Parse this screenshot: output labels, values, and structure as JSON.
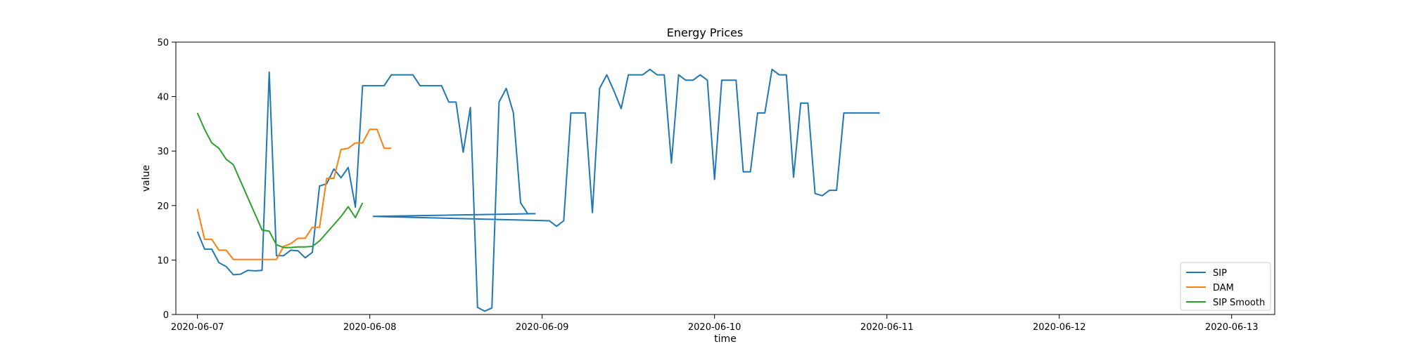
{
  "chart_data": {
    "type": "line",
    "title": "Energy Prices",
    "xlabel": "time",
    "ylabel": "value",
    "xlim": [
      "2020-06-06T21:00",
      "2020-06-13T06:00"
    ],
    "ylim": [
      0,
      50
    ],
    "x_ticks": [
      "2020-06-07",
      "2020-06-08",
      "2020-06-09",
      "2020-06-10",
      "2020-06-11",
      "2020-06-12",
      "2020-06-13"
    ],
    "y_ticks": [
      0,
      10,
      20,
      30,
      40,
      50
    ],
    "grid": false,
    "legend_position": "lower-right",
    "series": [
      {
        "name": "SIP",
        "color": "#1f77b4",
        "points": [
          [
            "2020-06-07T00:00",
            15.2
          ],
          [
            "2020-06-07T01:00",
            12.0
          ],
          [
            "2020-06-07T02:00",
            12.0
          ],
          [
            "2020-06-07T03:00",
            9.5
          ],
          [
            "2020-06-07T04:00",
            8.8
          ],
          [
            "2020-06-07T05:00",
            7.3
          ],
          [
            "2020-06-07T06:00",
            7.4
          ],
          [
            "2020-06-07T07:00",
            8.1
          ],
          [
            "2020-06-07T08:00",
            8.0
          ],
          [
            "2020-06-07T09:00",
            8.1
          ],
          [
            "2020-06-07T10:00",
            44.5
          ],
          [
            "2020-06-07T11:00",
            10.8
          ],
          [
            "2020-06-07T12:00",
            10.8
          ],
          [
            "2020-06-07T13:00",
            11.8
          ],
          [
            "2020-06-07T14:00",
            11.7
          ],
          [
            "2020-06-07T15:00",
            10.4
          ],
          [
            "2020-06-07T16:00",
            11.4
          ],
          [
            "2020-06-07T17:00",
            23.6
          ],
          [
            "2020-06-07T18:00",
            24.0
          ],
          [
            "2020-06-07T19:00",
            26.7
          ],
          [
            "2020-06-07T20:00",
            25.1
          ],
          [
            "2020-06-07T21:00",
            27.0
          ],
          [
            "2020-06-07T22:00",
            19.7
          ],
          [
            "2020-06-07T23:00",
            42.0
          ],
          [
            "2020-06-08T00:00",
            42.0
          ],
          [
            "2020-06-08T01:00",
            42.0
          ],
          [
            "2020-06-08T02:00",
            42.0
          ],
          [
            "2020-06-08T03:00",
            44.0
          ],
          [
            "2020-06-08T04:00",
            44.0
          ],
          [
            "2020-06-08T05:00",
            44.0
          ],
          [
            "2020-06-08T06:00",
            44.0
          ],
          [
            "2020-06-08T07:00",
            42.0
          ],
          [
            "2020-06-08T08:00",
            42.0
          ],
          [
            "2020-06-08T09:00",
            42.0
          ],
          [
            "2020-06-08T10:00",
            42.0
          ],
          [
            "2020-06-08T11:00",
            39.0
          ],
          [
            "2020-06-08T12:00",
            39.0
          ],
          [
            "2020-06-08T13:00",
            29.8
          ],
          [
            "2020-06-08T14:00",
            38.0
          ],
          [
            "2020-06-08T15:00",
            1.3
          ],
          [
            "2020-06-08T16:00",
            0.6
          ],
          [
            "2020-06-08T17:00",
            1.2
          ],
          [
            "2020-06-08T18:00",
            39.0
          ],
          [
            "2020-06-08T19:00",
            41.5
          ],
          [
            "2020-06-08T20:00",
            37.0
          ],
          [
            "2020-06-08T21:00",
            20.5
          ],
          [
            "2020-06-08T22:00",
            18.5
          ],
          [
            "2020-06-08T23:00",
            18.5
          ],
          [
            "2020-06-08T00:30",
            18.0
          ],
          [
            "2020-06-09T01:00",
            17.2
          ],
          [
            "2020-06-09T02:00",
            16.2
          ],
          [
            "2020-06-09T03:00",
            17.2
          ],
          [
            "2020-06-09T04:00",
            37.0
          ],
          [
            "2020-06-09T05:00",
            37.0
          ],
          [
            "2020-06-09T06:00",
            37.0
          ],
          [
            "2020-06-09T07:00",
            18.7
          ],
          [
            "2020-06-09T08:00",
            41.5
          ],
          [
            "2020-06-09T09:00",
            44.0
          ],
          [
            "2020-06-09T10:00",
            41.0
          ],
          [
            "2020-06-09T11:00",
            37.8
          ],
          [
            "2020-06-09T12:00",
            44.0
          ],
          [
            "2020-06-09T13:00",
            44.0
          ],
          [
            "2020-06-09T14:00",
            44.0
          ],
          [
            "2020-06-09T15:00",
            45.0
          ],
          [
            "2020-06-09T16:00",
            44.0
          ],
          [
            "2020-06-09T17:00",
            44.0
          ],
          [
            "2020-06-09T18:00",
            27.8
          ],
          [
            "2020-06-09T19:00",
            44.0
          ],
          [
            "2020-06-09T20:00",
            43.0
          ],
          [
            "2020-06-09T21:00",
            43.0
          ],
          [
            "2020-06-09T22:00",
            44.0
          ],
          [
            "2020-06-09T23:00",
            43.0
          ],
          [
            "2020-06-10T00:00",
            24.8
          ],
          [
            "2020-06-10T01:00",
            43.0
          ],
          [
            "2020-06-10T02:00",
            43.0
          ],
          [
            "2020-06-10T03:00",
            43.0
          ],
          [
            "2020-06-10T04:00",
            26.2
          ],
          [
            "2020-06-10T05:00",
            26.2
          ],
          [
            "2020-06-10T06:00",
            37.0
          ],
          [
            "2020-06-10T07:00",
            37.0
          ],
          [
            "2020-06-10T08:00",
            45.0
          ],
          [
            "2020-06-10T09:00",
            44.0
          ],
          [
            "2020-06-10T10:00",
            44.0
          ],
          [
            "2020-06-10T11:00",
            25.2
          ],
          [
            "2020-06-10T12:00",
            38.8
          ],
          [
            "2020-06-10T13:00",
            38.8
          ],
          [
            "2020-06-10T14:00",
            22.2
          ],
          [
            "2020-06-10T15:00",
            21.8
          ],
          [
            "2020-06-10T16:00",
            22.8
          ],
          [
            "2020-06-10T17:00",
            22.8
          ],
          [
            "2020-06-10T18:00",
            37.0
          ],
          [
            "2020-06-10T19:00",
            37.0
          ],
          [
            "2020-06-10T20:00",
            37.0
          ],
          [
            "2020-06-10T21:00",
            37.0
          ],
          [
            "2020-06-10T22:00",
            37.0
          ],
          [
            "2020-06-10T23:00",
            37.0
          ]
        ]
      },
      {
        "name": "DAM",
        "color": "#ff7f0e",
        "points": [
          [
            "2020-06-07T00:00",
            19.4
          ],
          [
            "2020-06-07T01:00",
            13.8
          ],
          [
            "2020-06-07T02:00",
            13.8
          ],
          [
            "2020-06-07T03:00",
            11.8
          ],
          [
            "2020-06-07T04:00",
            11.8
          ],
          [
            "2020-06-07T05:00",
            10.1
          ],
          [
            "2020-06-07T07:00",
            10.1
          ],
          [
            "2020-06-07T09:00",
            10.1
          ],
          [
            "2020-06-07T11:00",
            10.1
          ],
          [
            "2020-06-07T12:00",
            12.5
          ],
          [
            "2020-06-07T13:00",
            13.0
          ],
          [
            "2020-06-07T14:00",
            14.0
          ],
          [
            "2020-06-07T15:00",
            14.0
          ],
          [
            "2020-06-07T16:00",
            16.0
          ],
          [
            "2020-06-07T17:00",
            16.0
          ],
          [
            "2020-06-07T18:00",
            25.0
          ],
          [
            "2020-06-07T19:00",
            25.0
          ],
          [
            "2020-06-07T20:00",
            30.3
          ],
          [
            "2020-06-07T21:00",
            30.5
          ],
          [
            "2020-06-07T22:00",
            31.5
          ],
          [
            "2020-06-07T23:00",
            31.5
          ],
          [
            "2020-06-08T00:00",
            34.0
          ],
          [
            "2020-06-08T01:00",
            34.0
          ],
          [
            "2020-06-08T02:00",
            30.5
          ],
          [
            "2020-06-08T03:00",
            30.5
          ]
        ]
      },
      {
        "name": "SIP Smooth",
        "color": "#2ca02c",
        "points": [
          [
            "2020-06-07T00:00",
            37.0
          ],
          [
            "2020-06-07T01:00",
            34.0
          ],
          [
            "2020-06-07T02:00",
            31.5
          ],
          [
            "2020-06-07T03:00",
            30.5
          ],
          [
            "2020-06-07T04:00",
            28.5
          ],
          [
            "2020-06-07T05:00",
            27.5
          ],
          [
            "2020-06-07T06:00",
            24.5
          ],
          [
            "2020-06-07T07:00",
            21.5
          ],
          [
            "2020-06-07T08:00",
            18.5
          ],
          [
            "2020-06-07T09:00",
            15.5
          ],
          [
            "2020-06-07T10:00",
            15.3
          ],
          [
            "2020-06-07T11:00",
            12.8
          ],
          [
            "2020-06-07T12:00",
            12.3
          ],
          [
            "2020-06-07T13:00",
            12.3
          ],
          [
            "2020-06-07T14:00",
            12.4
          ],
          [
            "2020-06-07T15:00",
            12.4
          ],
          [
            "2020-06-07T16:00",
            12.5
          ],
          [
            "2020-06-07T17:00",
            13.5
          ],
          [
            "2020-06-07T18:00",
            15.0
          ],
          [
            "2020-06-07T19:00",
            16.5
          ],
          [
            "2020-06-07T20:00",
            18.0
          ],
          [
            "2020-06-07T21:00",
            19.8
          ],
          [
            "2020-06-07T22:00",
            17.8
          ],
          [
            "2020-06-07T23:00",
            20.5
          ]
        ]
      }
    ]
  }
}
